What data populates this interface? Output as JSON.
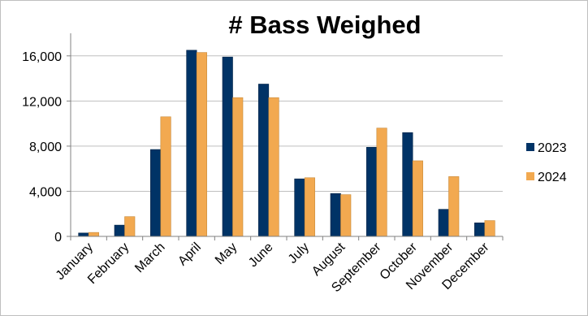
{
  "chart_data": {
    "type": "bar",
    "title": "# Bass Weighed",
    "xlabel": "",
    "ylabel": "",
    "categories": [
      "January",
      "February",
      "March",
      "April",
      "May",
      "June",
      "July",
      "August",
      "September",
      "October",
      "November",
      "December"
    ],
    "series": [
      {
        "name": "2023",
        "color": "#003366",
        "values": [
          300,
          1000,
          7700,
          16500,
          15900,
          13500,
          5100,
          3800,
          7900,
          9200,
          2400,
          1200
        ]
      },
      {
        "name": "2024",
        "color": "#F2A950",
        "values": [
          350,
          1750,
          10600,
          16300,
          12300,
          12300,
          5200,
          3700,
          9600,
          6700,
          5300,
          1400
        ]
      }
    ],
    "y_ticks": [
      "0",
      "4,000",
      "8,000",
      "12,000",
      "16,000"
    ],
    "ylim": [
      0,
      18000
    ],
    "grid": true,
    "legend_position": "right"
  }
}
